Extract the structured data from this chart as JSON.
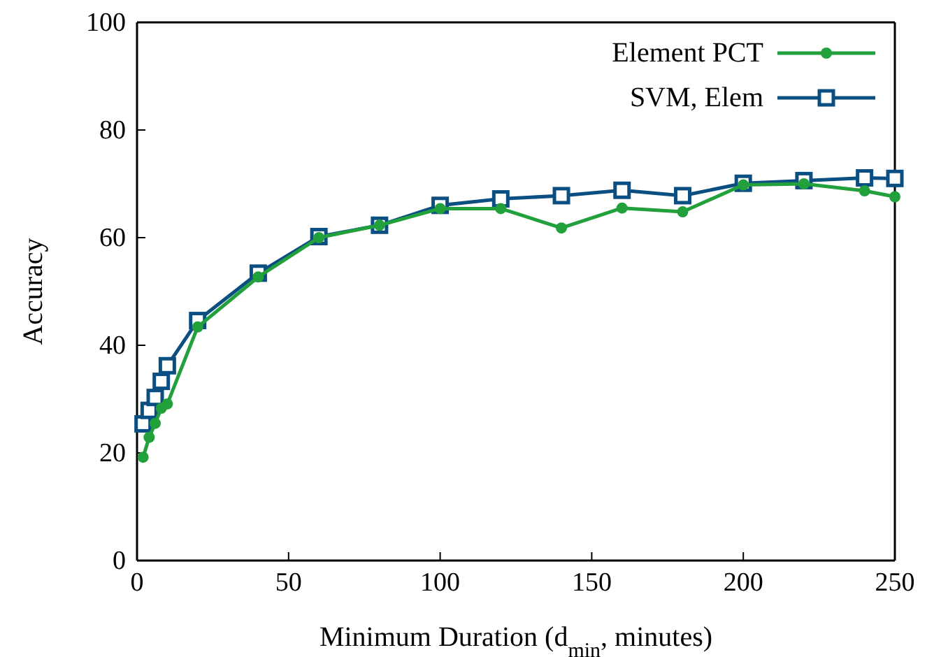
{
  "chart_data": {
    "type": "line",
    "xlabel": "Minimum Duration (d$_{min}$, minutes)",
    "ylabel": "Accuracy",
    "xlim": [
      0,
      250
    ],
    "xticks": [
      0,
      50,
      100,
      150,
      200,
      250
    ],
    "ylim": [
      0,
      100
    ],
    "yticks": [
      0,
      20,
      40,
      60,
      80,
      100
    ],
    "legend": "top right",
    "series": [
      {
        "name": "Element PCT",
        "color": "#22a03c",
        "marker": "circle",
        "x": [
          2,
          4,
          6,
          8,
          10,
          20,
          40,
          60,
          80,
          100,
          120,
          140,
          160,
          180,
          200,
          220,
          240,
          250
        ],
        "values": [
          19.2,
          22.9,
          25.5,
          28.3,
          29.1,
          43.4,
          52.7,
          60,
          62.3,
          65.4,
          65.4,
          61.8,
          65.5,
          64.8,
          69.8,
          70,
          68.7,
          67.6
        ]
      },
      {
        "name": "SVM, Elem",
        "color": "#0b4f82",
        "marker": "square",
        "x": [
          2,
          4,
          6,
          8,
          10,
          20,
          40,
          60,
          80,
          100,
          120,
          140,
          160,
          180,
          200,
          220,
          240,
          250
        ],
        "values": [
          25.4,
          27.9,
          30.3,
          33.3,
          36.2,
          44.6,
          53.4,
          60.2,
          62.3,
          66,
          67.2,
          67.8,
          68.8,
          67.8,
          70.1,
          70.6,
          71.1,
          71
        ]
      }
    ]
  }
}
